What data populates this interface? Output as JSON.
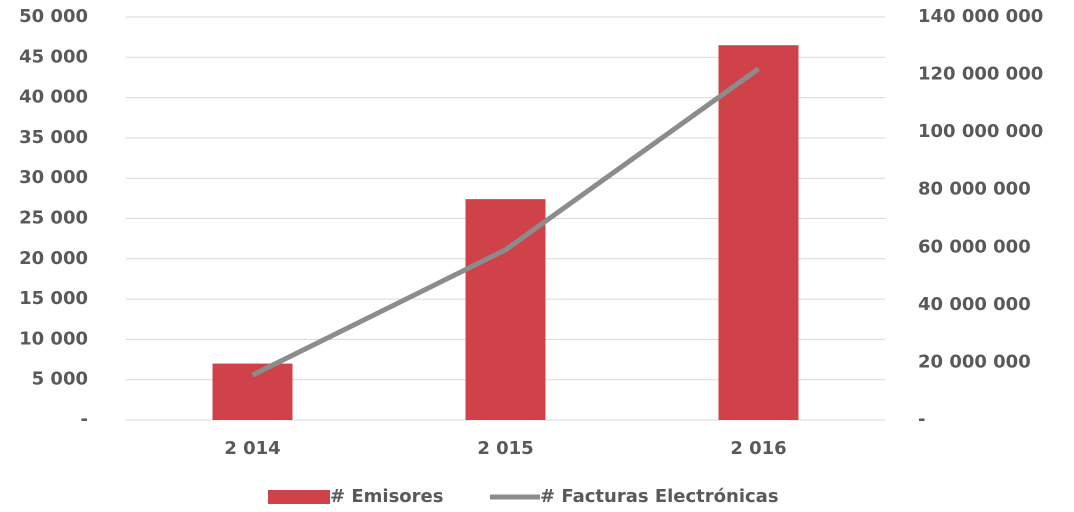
{
  "chart_data": {
    "type": "bar_line",
    "categories": [
      "2 014",
      "2 015",
      "2 016"
    ],
    "series": [
      {
        "name": "# Emisores",
        "color": "#cf4249",
        "type": "bar",
        "values": [
          7000,
          27400,
          46500
        ]
      },
      {
        "name": "# Facturas Electrónicas",
        "color": "#8c8c8c",
        "type": "line",
        "axis": "y2",
        "values": [
          15600000,
          59100000,
          122000000
        ]
      }
    ],
    "ylim": [
      0,
      50000
    ],
    "yticks": [
      {
        "value": 0,
        "label": "-"
      },
      {
        "value": 5000,
        "label": "5 000"
      },
      {
        "value": 10000,
        "label": "10 000"
      },
      {
        "value": 15000,
        "label": "15 000"
      },
      {
        "value": 20000,
        "label": "20 000"
      },
      {
        "value": 25000,
        "label": "25 000"
      },
      {
        "value": 30000,
        "label": "30 000"
      },
      {
        "value": 35000,
        "label": "35 000"
      },
      {
        "value": 40000,
        "label": "40 000"
      },
      {
        "value": 45000,
        "label": "45 000"
      },
      {
        "value": 50000,
        "label": "50 000"
      }
    ],
    "y2lim": [
      0,
      140000000
    ],
    "y2ticks": [
      {
        "value": 0,
        "label": "-"
      },
      {
        "value": 20000000,
        "label": "20 000 000"
      },
      {
        "value": 40000000,
        "label": "40 000 000"
      },
      {
        "value": 60000000,
        "label": "60 000 000"
      },
      {
        "value": 80000000,
        "label": "80 000 000"
      },
      {
        "value": 100000000,
        "label": "100 000 000"
      },
      {
        "value": 120000000,
        "label": "120 000 000"
      },
      {
        "value": 140000000,
        "label": "140 000 000"
      }
    ],
    "grid": true,
    "legend": "bottom"
  }
}
